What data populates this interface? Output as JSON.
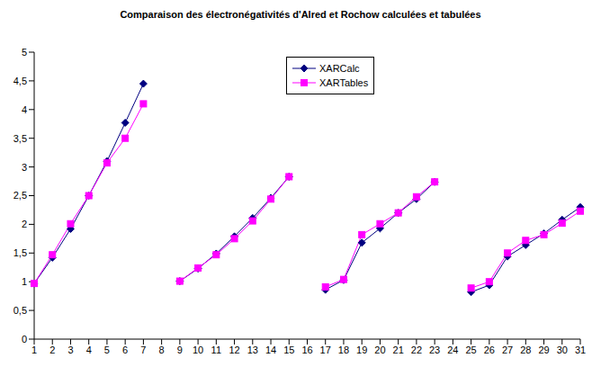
{
  "chart_data": {
    "type": "line",
    "title": "Comparaison des électronégativités d'Alred et Rochow calculées et tabulées",
    "categories": [
      "1",
      "2",
      "3",
      "4",
      "5",
      "6",
      "7",
      "8",
      "9",
      "10",
      "11",
      "12",
      "13",
      "14",
      "15",
      "16",
      "17",
      "18",
      "19",
      "20",
      "21",
      "22",
      "23",
      "24",
      "25",
      "26",
      "27",
      "28",
      "29",
      "30",
      "31"
    ],
    "series": [
      {
        "name": "XARCalc",
        "color": "#000080",
        "marker": "diamond",
        "values": [
          0.97,
          1.42,
          1.92,
          2.5,
          3.1,
          3.77,
          4.45,
          null,
          1.01,
          1.23,
          1.49,
          1.79,
          2.11,
          2.46,
          2.83,
          null,
          0.86,
          1.03,
          1.68,
          1.93,
          2.2,
          2.44,
          2.74,
          null,
          0.82,
          0.94,
          1.44,
          1.64,
          1.84,
          2.08,
          2.3
        ]
      },
      {
        "name": "XARTables",
        "color": "#ff00ff",
        "marker": "square",
        "values": [
          0.97,
          1.47,
          2.01,
          2.5,
          3.07,
          3.5,
          4.1,
          null,
          1.01,
          1.24,
          1.47,
          1.75,
          2.06,
          2.44,
          2.83,
          null,
          0.91,
          1.04,
          1.82,
          2.01,
          2.2,
          2.48,
          2.74,
          null,
          0.89,
          1.0,
          1.5,
          1.72,
          1.82,
          2.02,
          2.23
        ]
      }
    ],
    "ylim": [
      0,
      5
    ],
    "yticks": [
      0,
      {
        "value": 0.5,
        "label": "0,5"
      },
      1,
      {
        "value": 1.5,
        "label": "1,5"
      },
      2,
      {
        "value": 2.5,
        "label": "2,5"
      },
      3,
      {
        "value": 3.5,
        "label": "3,5"
      },
      4,
      {
        "value": 4.5,
        "label": "4,5"
      },
      5
    ],
    "grid": false,
    "legend": "top"
  }
}
